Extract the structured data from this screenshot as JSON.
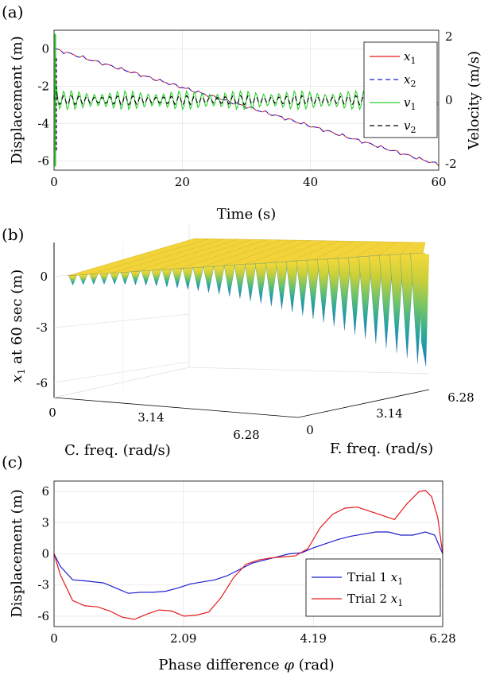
{
  "figure": {
    "panels": [
      "(a)",
      "(b)",
      "(c)"
    ]
  },
  "chart_data": [
    {
      "type": "line",
      "panel": "(a)",
      "xlabel": "Time (s)",
      "ylabel": "Displacement (m)",
      "ylabel_right": "Velocity (m/s)",
      "xlim": [
        0,
        60
      ],
      "ylim": [
        -6.5,
        1.0
      ],
      "ylim_right": [
        -2.2,
        2.2
      ],
      "xticks": [
        "0",
        "20",
        "40",
        "60"
      ],
      "yticks": [
        "0",
        "-2",
        "-4",
        "-6"
      ],
      "yticks_right": [
        "2",
        "0",
        "-2"
      ],
      "grid": true,
      "legend_position": "top-right",
      "series": [
        {
          "name": "x1",
          "label_main": "x",
          "label_sub": "1",
          "color": "#e41a1c",
          "style": "solid",
          "axis": "left",
          "x": [
            0,
            10,
            20,
            30,
            40,
            50,
            60
          ],
          "values": [
            0,
            -1.03,
            -2.07,
            -3.1,
            -4.14,
            -5.17,
            -6.2
          ]
        },
        {
          "name": "x2",
          "label_main": "x",
          "label_sub": "2",
          "color": "#1f1fcf",
          "style": "dashed",
          "axis": "left",
          "x": [
            0,
            10,
            20,
            30,
            40,
            50,
            60
          ],
          "values": [
            0,
            -1.03,
            -2.07,
            -3.1,
            -4.14,
            -5.17,
            -6.2
          ]
        },
        {
          "name": "v1",
          "label_main": "v",
          "label_sub": "1",
          "color": "#2ccf2c",
          "style": "solid",
          "axis": "right",
          "mean": 0,
          "amplitude": 0.3,
          "period_s": 1.2
        },
        {
          "name": "v2",
          "label_main": "v",
          "label_sub": "2",
          "color": "#000000",
          "style": "dashed",
          "axis": "right",
          "mean": 0,
          "amplitude": 0.15,
          "period_s": 1.2
        }
      ]
    },
    {
      "type": "surface",
      "panel": "(b)",
      "xlabel": "C. freq. (rad/s)",
      "ylabel": "F. freq. (rad/s)",
      "zlabel_main": "x",
      "zlabel_sub": "1",
      "zlabel_rest": " at 60 sec (m)",
      "xticks": [
        "0",
        "3.14",
        "6.28"
      ],
      "yticks": [
        "0",
        "3.14",
        "6.28"
      ],
      "zticks": [
        "0",
        "-3",
        "-6"
      ],
      "zlim": [
        -7,
        1
      ],
      "colormap": [
        "#2a6fb8",
        "#22a6a0",
        "#6cc36a",
        "#c7cf3a",
        "#f5d93a"
      ]
    },
    {
      "type": "line",
      "panel": "(c)",
      "xlabel_main": "Phase difference ",
      "xlabel_symbol": "φ",
      "xlabel_unit": " (rad)",
      "ylabel": "Displacement (m)",
      "xlim": [
        0,
        6.28
      ],
      "ylim": [
        -7,
        7
      ],
      "xticks": [
        "0",
        "2.09",
        "4.19",
        "6.28"
      ],
      "yticks": [
        "6",
        "3",
        "0",
        "-3",
        "-6"
      ],
      "grid": true,
      "legend_position": "bottom-right",
      "series": [
        {
          "name": "Trial 1 x1",
          "label_main": "Trial 1 ",
          "label_var": "x",
          "label_sub": "1",
          "color": "#1f1fcf",
          "x": [
            0,
            0.1,
            0.3,
            0.5,
            0.8,
            1.0,
            1.2,
            1.4,
            1.6,
            1.8,
            2.0,
            2.2,
            2.4,
            2.6,
            2.8,
            3.0,
            3.2,
            3.4,
            3.6,
            3.8,
            4.0,
            4.2,
            4.4,
            4.6,
            4.8,
            5.0,
            5.2,
            5.4,
            5.6,
            5.8,
            6.0,
            6.15,
            6.28
          ],
          "values": [
            0,
            -1.2,
            -2.5,
            -2.6,
            -2.8,
            -3.3,
            -3.8,
            -3.7,
            -3.7,
            -3.6,
            -3.3,
            -2.9,
            -2.7,
            -2.5,
            -2.1,
            -1.5,
            -0.9,
            -0.6,
            -0.3,
            0,
            0.1,
            0.6,
            1.0,
            1.4,
            1.7,
            1.9,
            2.1,
            2.1,
            1.8,
            1.8,
            2.1,
            1.8,
            0
          ]
        },
        {
          "name": "Trial 2 x1",
          "label_main": "Trial 2 ",
          "label_var": "x",
          "label_sub": "1",
          "color": "#e41a1c",
          "x": [
            0,
            0.1,
            0.3,
            0.5,
            0.7,
            0.9,
            1.1,
            1.3,
            1.5,
            1.7,
            1.9,
            2.1,
            2.3,
            2.5,
            2.7,
            2.9,
            3.1,
            3.3,
            3.5,
            3.7,
            3.9,
            4.1,
            4.3,
            4.5,
            4.7,
            4.9,
            5.1,
            5.3,
            5.5,
            5.7,
            5.9,
            6.0,
            6.1,
            6.2,
            6.28
          ],
          "values": [
            0,
            -2.0,
            -4.5,
            -5.0,
            -5.1,
            -5.5,
            -6.1,
            -6.3,
            -5.8,
            -5.4,
            -5.5,
            -6.0,
            -5.9,
            -5.6,
            -4.2,
            -2.3,
            -1.0,
            -0.6,
            -0.4,
            -0.3,
            -0.2,
            0.5,
            2.5,
            3.8,
            4.4,
            4.5,
            4.1,
            3.7,
            3.3,
            4.8,
            6.0,
            6.1,
            5.5,
            3.5,
            0
          ]
        }
      ]
    }
  ]
}
